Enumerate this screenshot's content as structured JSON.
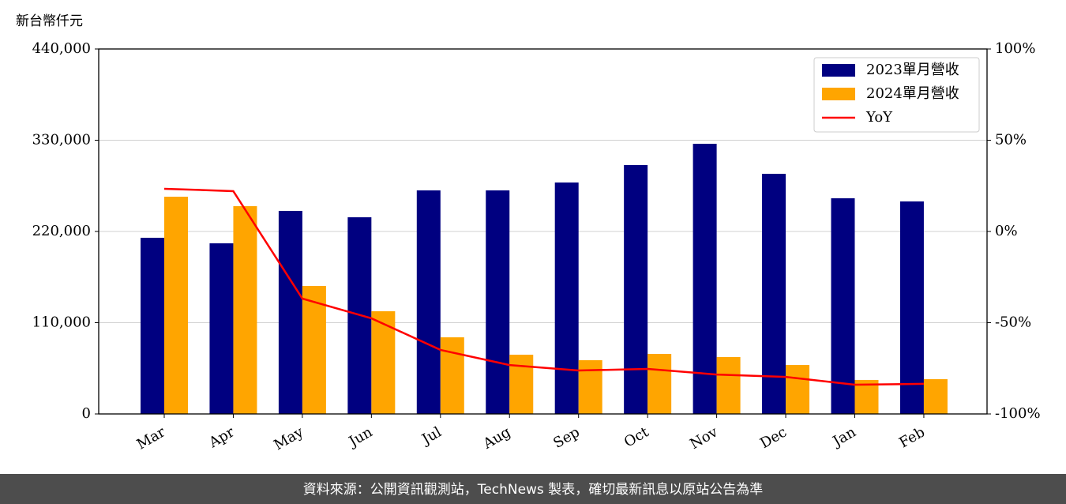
{
  "chart_data": {
    "type": "bar_line",
    "y_label": "新台幣仟元",
    "footer": "資料來源：公開資訊觀測站，TechNews 製表，確切最新訊息以原站公告為準",
    "categories": [
      "Mar",
      "Apr",
      "May",
      "Jun",
      "Jul",
      "Aug",
      "Sep",
      "Oct",
      "Nov",
      "Dec",
      "Jan",
      "Feb"
    ],
    "series": [
      {
        "name": "2023單月營收",
        "color": "#000080",
        "type": "bar",
        "values": [
          212400,
          205700,
          244800,
          237100,
          269500,
          269500,
          279000,
          300000,
          325700,
          289500,
          260000,
          256200
        ]
      },
      {
        "name": "2024單月營收",
        "color": "#ffa500",
        "type": "bar",
        "values": [
          261900,
          250500,
          154300,
          123800,
          92400,
          71400,
          64800,
          72400,
          68600,
          59000,
          41000,
          41900
        ]
      },
      {
        "name": "YoY",
        "color": "#ff0000",
        "type": "line",
        "axis": "y2",
        "values": [
          23.4,
          22.1,
          -36.8,
          -47.6,
          -64.9,
          -73.2,
          -76.2,
          -75.3,
          -78.4,
          -79.7,
          -84.0,
          -83.5
        ]
      }
    ],
    "ylim": [
      0,
      440000
    ],
    "yticks": [
      0,
      {
        "value": 110000,
        "label": "110,000"
      },
      {
        "value": 220000,
        "label": "220,000"
      },
      {
        "value": 330000,
        "label": "330,000"
      },
      {
        "value": 440000,
        "label": "440,000"
      }
    ],
    "y2lim": [
      -100,
      100
    ],
    "y2ticks": [
      {
        "value": -100,
        "label": "-100%"
      },
      {
        "value": -50,
        "label": "-50%"
      },
      {
        "value": 0,
        "label": "0%"
      },
      {
        "value": 50,
        "label": "50%"
      },
      {
        "value": 100,
        "label": "100%"
      }
    ],
    "grid": true,
    "legend": "upper right"
  }
}
